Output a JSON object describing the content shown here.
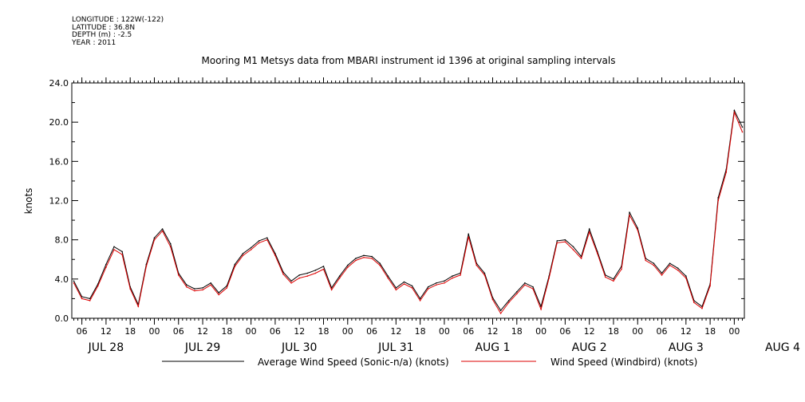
{
  "metadata": {
    "longitude": "LONGITUDE : 122W(-122)",
    "latitude": "LATITUDE : 36.8N",
    "depth": "DEPTH (m) : -2.5",
    "year": "YEAR : 2011"
  },
  "chart_data": {
    "type": "line",
    "title": "Mooring M1 Metsys data from MBARI instrument id 1396 at original sampling intervals",
    "ylabel": "knots",
    "xlabel": "",
    "ylim": [
      0,
      24
    ],
    "xlim_hours": [
      3.5,
      170.5
    ],
    "y_ticks": [
      "0.0",
      "4.0",
      "8.0",
      "12.0",
      "16.0",
      "20.0",
      "24.0"
    ],
    "x_hour_ticks": [
      "06",
      "12",
      "18",
      "00",
      "06",
      "12",
      "18",
      "00",
      "06",
      "12",
      "18",
      "00",
      "06",
      "12",
      "18",
      "00",
      "06",
      "12",
      "18",
      "00",
      "06",
      "12",
      "18",
      "00",
      "06",
      "12",
      "18",
      "00"
    ],
    "x_day_labels": [
      "JUL 28",
      "JUL 29",
      "JUL 30",
      "JUL 31",
      "AUG  1",
      "AUG  2",
      "AUG  3",
      "AUG  4"
    ],
    "legend_placement": "bottom",
    "series": [
      {
        "name": "Average Wind Speed (Sonic-n/a) (knots)",
        "color": "#000000",
        "x": [
          4,
          6,
          8,
          10,
          12,
          14,
          16,
          18,
          20,
          22,
          24,
          26,
          28,
          30,
          32,
          34,
          36,
          38,
          40,
          42,
          44,
          46,
          48,
          50,
          52,
          54,
          56,
          58,
          60,
          62,
          64,
          66,
          68,
          70,
          72,
          74,
          76,
          78,
          80,
          82,
          84,
          86,
          88,
          90,
          92,
          94,
          96,
          98,
          100,
          102,
          104,
          106,
          108,
          110,
          112,
          114,
          116,
          118,
          120,
          122,
          124,
          126,
          128,
          130,
          132,
          134,
          136,
          138,
          140,
          142,
          144,
          146,
          148,
          150,
          152,
          154,
          156,
          158,
          160,
          162,
          164,
          166,
          168,
          170
        ],
        "values": [
          3.8,
          2.2,
          2.0,
          3.5,
          5.5,
          7.3,
          6.8,
          3.2,
          1.4,
          5.5,
          8.2,
          9.1,
          7.6,
          4.6,
          3.4,
          3.0,
          3.1,
          3.6,
          2.6,
          3.3,
          5.5,
          6.6,
          7.2,
          7.9,
          8.2,
          6.6,
          4.7,
          3.8,
          4.4,
          4.6,
          4.9,
          5.3,
          3.1,
          4.3,
          5.4,
          6.1,
          6.4,
          6.3,
          5.6,
          4.3,
          3.1,
          3.7,
          3.3,
          2.0,
          3.2,
          3.6,
          3.8,
          4.3,
          4.6,
          8.6,
          5.6,
          4.6,
          2.1,
          0.8,
          1.8,
          2.7,
          3.6,
          3.2,
          1.2,
          4.3,
          7.9,
          8.0,
          7.3,
          6.3,
          9.1,
          6.8,
          4.4,
          4.0,
          5.3,
          10.8,
          9.2,
          6.1,
          5.6,
          4.6,
          5.6,
          5.1,
          4.3,
          1.8,
          1.2,
          3.5,
          12.3,
          15.2,
          21.2,
          19.5
        ]
      },
      {
        "name": "Wind Speed (Windbird) (knots)",
        "color": "#dd0000",
        "x": [
          4,
          6,
          8,
          10,
          12,
          14,
          16,
          18,
          20,
          22,
          24,
          26,
          28,
          30,
          32,
          34,
          36,
          38,
          40,
          42,
          44,
          46,
          48,
          50,
          52,
          54,
          56,
          58,
          60,
          62,
          64,
          66,
          68,
          70,
          72,
          74,
          76,
          78,
          80,
          82,
          84,
          86,
          88,
          90,
          92,
          94,
          96,
          98,
          100,
          102,
          104,
          106,
          108,
          110,
          112,
          114,
          116,
          118,
          120,
          122,
          124,
          126,
          128,
          130,
          132,
          134,
          136,
          138,
          140,
          142,
          144,
          146,
          148,
          150,
          152,
          154,
          156,
          158,
          160,
          162,
          164,
          166,
          168,
          170
        ],
        "values": [
          3.6,
          2.0,
          1.8,
          3.3,
          5.2,
          7.0,
          6.5,
          3.0,
          1.2,
          5.3,
          8.0,
          8.9,
          7.3,
          4.4,
          3.2,
          2.8,
          2.9,
          3.4,
          2.4,
          3.1,
          5.3,
          6.4,
          7.0,
          7.7,
          8.0,
          6.4,
          4.5,
          3.6,
          4.1,
          4.3,
          4.6,
          5.0,
          2.9,
          4.1,
          5.2,
          5.9,
          6.2,
          6.1,
          5.4,
          4.1,
          2.9,
          3.5,
          3.1,
          1.8,
          3.0,
          3.4,
          3.6,
          4.1,
          4.4,
          8.3,
          5.4,
          4.4,
          1.9,
          0.5,
          1.6,
          2.5,
          3.4,
          3.0,
          0.9,
          4.1,
          7.7,
          7.8,
          7.0,
          6.1,
          8.8,
          6.6,
          4.2,
          3.8,
          5.0,
          10.5,
          9.0,
          5.9,
          5.4,
          4.4,
          5.4,
          4.9,
          4.1,
          1.6,
          1.0,
          3.3,
          12.0,
          14.9,
          21.0,
          19.0
        ]
      }
    ]
  }
}
